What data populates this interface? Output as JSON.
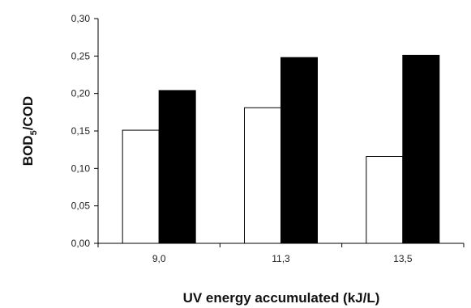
{
  "chart_data": {
    "type": "bar",
    "title": "",
    "xlabel": "UV energy accumulated (kJ/L)",
    "ylabel": {
      "main": "BOD",
      "sub": "5",
      "rest": "/COD"
    },
    "categories": [
      "9,0",
      "11,3",
      "13,5"
    ],
    "series": [
      {
        "fill": "#ffffff",
        "values": [
          0.151,
          0.181,
          0.116
        ]
      },
      {
        "fill": "#000000",
        "values": [
          0.204,
          0.248,
          0.251
        ]
      }
    ],
    "ylim": [
      0,
      0.3
    ],
    "yticks": [
      "0,00",
      "0,05",
      "0,10",
      "0,15",
      "0,20",
      "0,25",
      "0,30"
    ],
    "grid": false,
    "legend": "none"
  }
}
